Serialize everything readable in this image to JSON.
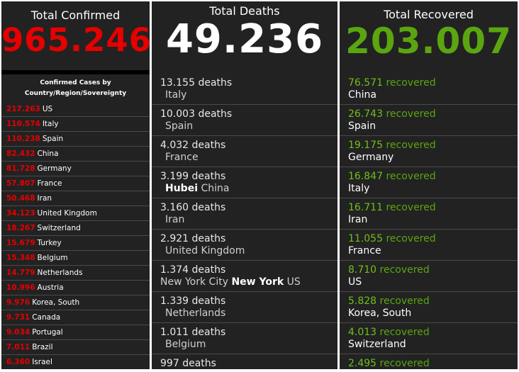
{
  "colors": {
    "confirmed": "#e60000",
    "recovered": "#5aa510",
    "panel": "#222222"
  },
  "confirmed": {
    "title": "Total Confirmed",
    "total": "965.246",
    "subtitle_1": "Confirmed Cases by",
    "subtitle_2": "Country/Region/Sovereignty",
    "items": [
      {
        "num": "217.263",
        "place": "US"
      },
      {
        "num": "110.574",
        "place": "Italy"
      },
      {
        "num": "110.238",
        "place": "Spain"
      },
      {
        "num": "82.432",
        "place": "China"
      },
      {
        "num": "81.728",
        "place": "Germany"
      },
      {
        "num": "57.807",
        "place": "France"
      },
      {
        "num": "50.468",
        "place": "Iran"
      },
      {
        "num": "34.123",
        "place": "United Kingdom"
      },
      {
        "num": "18.267",
        "place": "Switzerland"
      },
      {
        "num": "15.679",
        "place": "Turkey"
      },
      {
        "num": "15.348",
        "place": "Belgium"
      },
      {
        "num": "14.779",
        "place": "Netherlands"
      },
      {
        "num": "10.996",
        "place": "Austria"
      },
      {
        "num": "9.976",
        "place": "Korea, South"
      },
      {
        "num": "9.731",
        "place": "Canada"
      },
      {
        "num": "9.034",
        "place": "Portugal"
      },
      {
        "num": "7.011",
        "place": "Brazil"
      },
      {
        "num": "6.360",
        "place": "Israel"
      }
    ]
  },
  "deaths": {
    "title": "Total Deaths",
    "total": "49.236",
    "items": [
      {
        "num": "13.155",
        "unit": "deaths",
        "pre": "",
        "bold": "",
        "place": "Italy"
      },
      {
        "num": "10.003",
        "unit": "deaths",
        "pre": "",
        "bold": "",
        "place": "Spain"
      },
      {
        "num": "4.032",
        "unit": "deaths",
        "pre": "",
        "bold": "",
        "place": "France"
      },
      {
        "num": "3.199",
        "unit": "deaths",
        "pre": "",
        "bold": "Hubei",
        "place": "China"
      },
      {
        "num": "3.160",
        "unit": "deaths",
        "pre": "",
        "bold": "",
        "place": "Iran"
      },
      {
        "num": "2.921",
        "unit": "deaths",
        "pre": "",
        "bold": "",
        "place": "United Kingdom"
      },
      {
        "num": "1.374",
        "unit": "deaths",
        "pre": "New York City",
        "bold": "New York",
        "place": "US"
      },
      {
        "num": "1.339",
        "unit": "deaths",
        "pre": "",
        "bold": "",
        "place": "Netherlands"
      },
      {
        "num": "1.011",
        "unit": "deaths",
        "pre": "",
        "bold": "",
        "place": "Belgium"
      },
      {
        "num": "997",
        "unit": "deaths",
        "pre": "",
        "bold": "",
        "place": ""
      }
    ]
  },
  "recovered": {
    "title": "Total Recovered",
    "total": "203.007",
    "items": [
      {
        "num": "76.571",
        "unit": "recovered",
        "place": "China"
      },
      {
        "num": "26.743",
        "unit": "recovered",
        "place": "Spain"
      },
      {
        "num": "19.175",
        "unit": "recovered",
        "place": "Germany"
      },
      {
        "num": "16.847",
        "unit": "recovered",
        "place": "Italy"
      },
      {
        "num": "16.711",
        "unit": "recovered",
        "place": "Iran"
      },
      {
        "num": "11.055",
        "unit": "recovered",
        "place": "France"
      },
      {
        "num": "8.710",
        "unit": "recovered",
        "place": "US"
      },
      {
        "num": "5.828",
        "unit": "recovered",
        "place": "Korea, South"
      },
      {
        "num": "4.013",
        "unit": "recovered",
        "place": "Switzerland"
      },
      {
        "num": "2.495",
        "unit": "recovered",
        "place": ""
      }
    ]
  }
}
